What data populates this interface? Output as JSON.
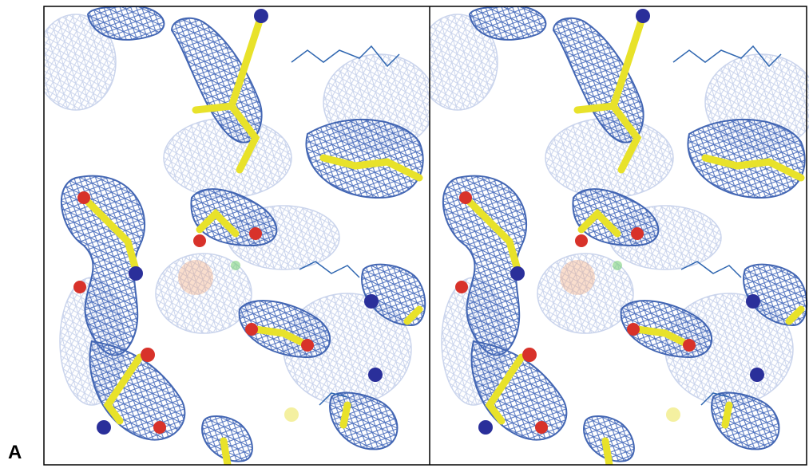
{
  "panel_label": "A"
}
